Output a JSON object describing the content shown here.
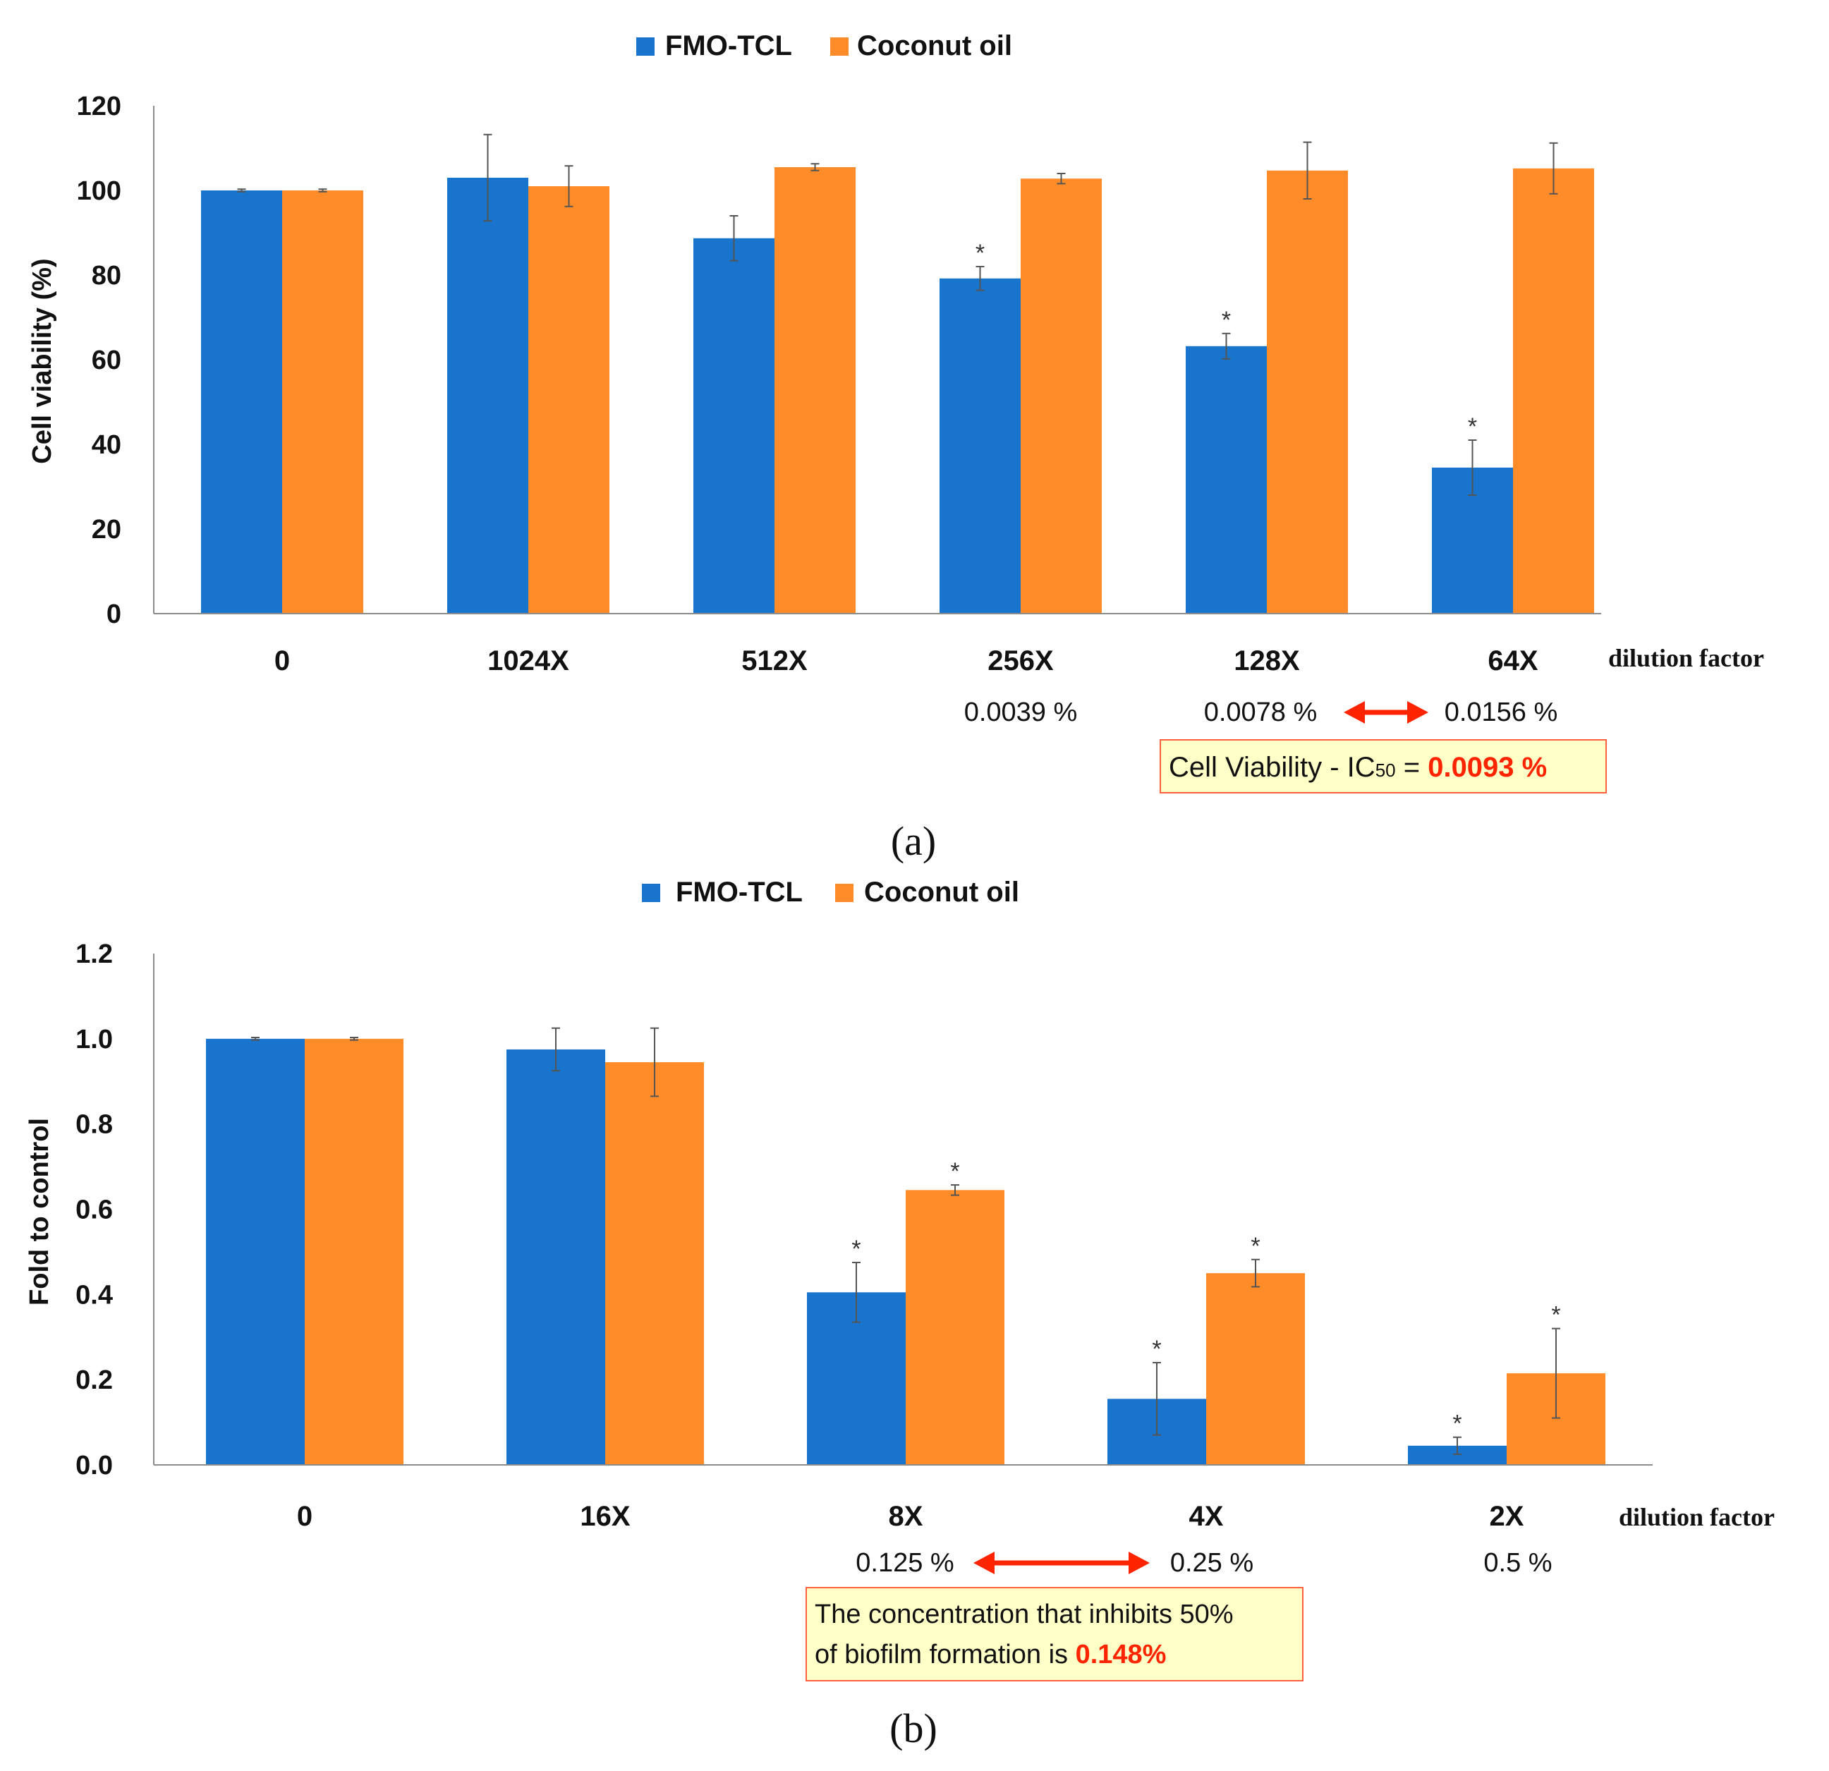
{
  "colors": {
    "fmo": "#1874CD",
    "coconut": "#FF8C28",
    "axis": "#8C8C8C",
    "text": "#111111",
    "highlight": "#FF2400",
    "box_fill": "#FFFFC8",
    "box_border": "#FF6040",
    "arrow": "#FF2400"
  },
  "chart_data": [
    {
      "type": "bar",
      "panel_label": "(a)",
      "title": "",
      "xlabel": "dilution factor",
      "ylabel": "Cell viability (%)",
      "ylim": [
        0,
        120
      ],
      "yticks": [
        "0",
        "20",
        "40",
        "60",
        "80",
        "100",
        "120"
      ],
      "grid": false,
      "legend": "top-center",
      "categories": [
        "0",
        "1024X",
        "512X",
        "256X",
        "128X",
        "64X"
      ],
      "series": [
        {
          "name": "FMO-TCL",
          "color": "#1874CD",
          "values": [
            100,
            103,
            88.7,
            79.2,
            63.2,
            34.5
          ],
          "errors": [
            0.3,
            10.2,
            5.3,
            2.8,
            3.0,
            6.5
          ],
          "significant": [
            false,
            false,
            false,
            true,
            true,
            true
          ]
        },
        {
          "name": "Coconut oil",
          "color": "#FF8C28",
          "values": [
            100,
            101,
            105.5,
            102.8,
            104.7,
            105.2
          ],
          "errors": [
            0.3,
            4.8,
            0.8,
            1.2,
            6.7,
            6.0
          ],
          "significant": [
            false,
            false,
            false,
            false,
            false,
            false
          ]
        }
      ],
      "concentrations": [
        {
          "category": "256X",
          "text": "0.0039 %"
        },
        {
          "category": "128X",
          "text": "0.0078 %"
        },
        {
          "category": "64X",
          "text": "0.0156 %"
        }
      ],
      "annotation": {
        "prefix": "Cell Viability - IC",
        "subscript": "50",
        "equals": " = ",
        "value": "0.0093 %"
      }
    },
    {
      "type": "bar",
      "panel_label": "(b)",
      "title": "",
      "xlabel": "dilution factor",
      "ylabel": "Fold to control",
      "ylim": [
        0,
        1.2
      ],
      "yticks": [
        "0.0",
        "0.2",
        "0.4",
        "0.6",
        "0.8",
        "1.0",
        "1.2"
      ],
      "grid": false,
      "legend": "top-center",
      "categories": [
        "0",
        "16X",
        "8X",
        "4X",
        "2X"
      ],
      "series": [
        {
          "name": "FMO-TCL",
          "color": "#1874CD",
          "values": [
            1.0,
            0.975,
            0.405,
            0.155,
            0.045
          ],
          "errors": [
            0.003,
            0.05,
            0.07,
            0.085,
            0.02
          ],
          "significant": [
            false,
            false,
            true,
            true,
            true
          ]
        },
        {
          "name": "Coconut oil",
          "color": "#FF8C28",
          "values": [
            1.0,
            0.945,
            0.645,
            0.45,
            0.215
          ],
          "errors": [
            0.003,
            0.08,
            0.012,
            0.032,
            0.105
          ],
          "significant": [
            false,
            false,
            true,
            true,
            true
          ]
        }
      ],
      "concentrations": [
        {
          "category": "8X",
          "text": "0.125 %"
        },
        {
          "category": "4X",
          "text": "0.25 %"
        },
        {
          "category": "2X",
          "text": "0.5 %"
        }
      ],
      "annotation": {
        "line1": "The concentration that inhibits 50%",
        "line2_prefix": "of biofilm formation is ",
        "value": "0.148%"
      }
    }
  ]
}
